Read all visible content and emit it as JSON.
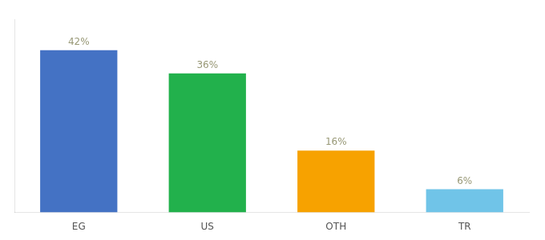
{
  "chart_data": {
    "type": "bar",
    "categories": [
      "EG",
      "US",
      "OTH",
      "TR"
    ],
    "values": [
      42,
      36,
      16,
      6
    ],
    "value_labels": [
      "42%",
      "36%",
      "16%",
      "6%"
    ],
    "data_labels": true,
    "colors": [
      "#4472c4",
      "#22b14c",
      "#f7a200",
      "#70c4e8"
    ],
    "ylim": [
      0,
      50
    ],
    "grid": false,
    "tick_labels": "x"
  }
}
